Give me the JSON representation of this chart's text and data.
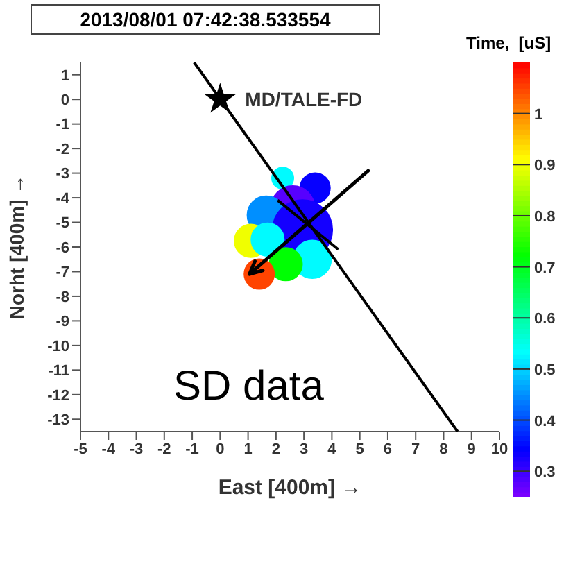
{
  "chart_data": {
    "type": "bubble",
    "title": "2013/08/01 07:42:38.533554",
    "xlabel": "East [400m]  →",
    "ylabel": "Norht [400m]  →",
    "clabel": "Time,  [uS]",
    "xlim": [
      -5,
      10
    ],
    "ylim": [
      -13.5,
      1.5
    ],
    "xticks": [
      -5,
      -4,
      -3,
      -2,
      -1,
      0,
      1,
      2,
      3,
      4,
      5,
      6,
      7,
      8,
      9,
      10
    ],
    "yticks": [
      -13,
      -12,
      -11,
      -10,
      -9,
      -8,
      -7,
      -6,
      -5,
      -4,
      -3,
      -2,
      -1,
      0,
      1
    ],
    "clim": [
      0.25,
      1.1
    ],
    "cticks": [
      0.3,
      0.4,
      0.5,
      0.6,
      0.7,
      0.8,
      0.9,
      1
    ],
    "series": [
      {
        "x": [
          2.24,
          3.4,
          2.6,
          1.65,
          2.95,
          1.1,
          1.7,
          3.3,
          2.35,
          1.4
        ],
        "values": [
          -3.2,
          -3.6,
          -4.4,
          -4.7,
          -5.3,
          -5.75,
          -5.7,
          -6.5,
          -6.7,
          -7.1
        ],
        "sizes": [
          0.13,
          0.25,
          0.53,
          0.4,
          1,
          0.3,
          0.3,
          0.4,
          0.3,
          0.25
        ],
        "cvalues": [
          0.53,
          0.34,
          0.28,
          0.45,
          0.33,
          0.9,
          0.53,
          0.53,
          0.72,
          1.05
        ],
        "colors": [
          "#00fbff",
          "#0600ff",
          "#5700ff",
          "#008eff",
          "#1400ff",
          "#f0ff00",
          "#00fbff",
          "#00fbff",
          "#00ff03",
          "#ff4400"
        ]
      },
      {
        "type": "line",
        "x": [
          -0.93,
          8.5
        ],
        "values": [
          1.5,
          -13.5
        ],
        "color": "#000000"
      },
      {
        "type": "line",
        "x": [
          5.3,
          1.05
        ],
        "values": [
          -2.9,
          -7.1
        ],
        "color": "#000000"
      },
      {
        "type": "line",
        "x": [
          2.06,
          4.23
        ],
        "values": [
          -4.1,
          -6.1
        ],
        "color": "#000000"
      },
      {
        "type": "scatter",
        "x": [
          0
        ],
        "values": [
          0
        ],
        "color": "#000000",
        "marker": "star"
      }
    ],
    "annotations": [
      {
        "text": "MD/TALE-FD",
        "x": 0,
        "y": 0
      },
      "SD data"
    ]
  }
}
